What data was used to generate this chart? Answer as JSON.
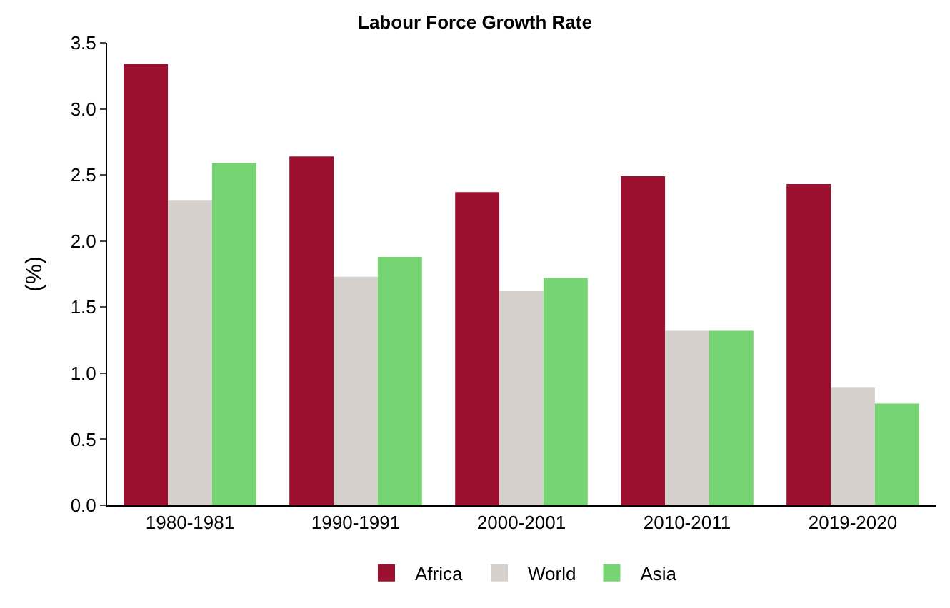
{
  "chart_data": {
    "type": "bar",
    "title": "Labour Force Growth Rate",
    "ylabel": "(%)",
    "categories": [
      "1980-1981",
      "1990-1991",
      "2000-2001",
      "2010-2011",
      "2019-2020"
    ],
    "series": [
      {
        "name": "Africa",
        "color": "#9b0f2f",
        "values": [
          3.34,
          2.64,
          2.37,
          2.49,
          2.43
        ]
      },
      {
        "name": "World",
        "color": "#d6d0cc",
        "values": [
          2.31,
          1.73,
          1.62,
          1.32,
          0.89
        ]
      },
      {
        "name": "Asia",
        "color": "#77d473",
        "values": [
          2.59,
          1.88,
          1.72,
          1.32,
          0.77
        ]
      }
    ],
    "ylim": [
      0,
      3.5
    ],
    "yticks": [
      {
        "value": 0,
        "label": "0.0"
      },
      {
        "value": 0.5,
        "label": "0.5"
      },
      {
        "value": 1,
        "label": "1.0"
      },
      {
        "value": 1.5,
        "label": "1.5"
      },
      {
        "value": 2,
        "label": "2.0"
      },
      {
        "value": 2.5,
        "label": "2.5"
      },
      {
        "value": 3,
        "label": "3.0"
      },
      {
        "value": 3.5,
        "label": "3.5"
      }
    ],
    "legend": "bottom"
  }
}
